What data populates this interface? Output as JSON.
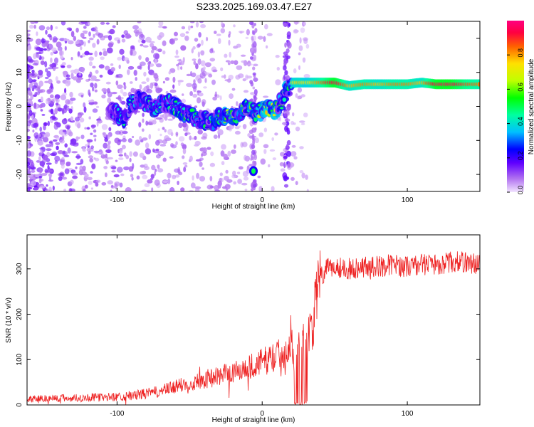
{
  "title": "S233.2025.169.03.47.E27",
  "colors": {
    "snr_line": "#ee2222",
    "ridge_spots": "#3a00e0",
    "scatter_spots": "#b27cf0"
  },
  "chart_data": [
    {
      "type": "heatmap",
      "name": "spectrogram",
      "xlabel": "Height of straight line (km)",
      "ylabel": "Frequency (Hz)",
      "xlim": [
        -162,
        150
      ],
      "ylim": [
        -25,
        25
      ],
      "xticks": [
        -100,
        0,
        100
      ],
      "yticks": [
        -20,
        -10,
        0,
        10,
        20
      ],
      "colorbar": {
        "label": "Normalized spectral amplitude",
        "range": [
          0,
          1
        ],
        "ticks": [
          "0.0",
          "0.2",
          "0.4",
          "0.6",
          "0.8"
        ],
        "colormap": [
          "#f2e4ff",
          "#b070f0",
          "#6000ff",
          "#0000ff",
          "#00c0ff",
          "#00ffa0",
          "#00ff00",
          "#c0ff00",
          "#ffe000",
          "#ff6000",
          "#ff0040",
          "#ff0080"
        ]
      },
      "ridge": {
        "x": [
          -105,
          -95,
          -90,
          -85,
          -80,
          -75,
          -70,
          -65,
          -60,
          -55,
          -50,
          -45,
          -40,
          -35,
          -30,
          -25,
          -20,
          -15,
          -10,
          -5,
          0,
          5,
          10,
          15,
          20,
          25,
          30,
          40,
          50,
          60,
          70,
          80,
          90,
          100,
          110,
          120,
          130,
          140,
          150
        ],
        "y": [
          -1,
          -4,
          1,
          2,
          1,
          -1,
          1,
          1,
          0,
          -2,
          -2,
          -4,
          -4,
          -5,
          -3,
          -3,
          -3,
          -2,
          0,
          -2,
          -1,
          -1,
          -1,
          3,
          7,
          7,
          7,
          7,
          7,
          6,
          6.5,
          6.5,
          6.5,
          6.5,
          7,
          6.5,
          6.5,
          6.5,
          6.5
        ],
        "amplitude": [
          0.3,
          0.4,
          0.45,
          0.4,
          0.45,
          0.4,
          0.5,
          0.45,
          0.5,
          0.45,
          0.55,
          0.5,
          0.45,
          0.5,
          0.55,
          0.6,
          0.5,
          0.55,
          0.5,
          0.55,
          0.6,
          0.65,
          0.6,
          0.5,
          0.7,
          0.75,
          0.7,
          0.8,
          0.95,
          0.75,
          0.8,
          0.75,
          0.8,
          0.8,
          0.75,
          0.95,
          0.95,
          0.85,
          0.8
        ]
      },
      "isolated_blob": {
        "x": -6,
        "y": -19,
        "amplitude": 0.5
      },
      "vertical_bands_x": [
        -6,
        17
      ]
    },
    {
      "type": "line",
      "name": "snr",
      "xlabel": "Height of straight line (km)",
      "ylabel": "SNR (10 * v/v)",
      "xlim": [
        -162,
        150
      ],
      "ylim": [
        0,
        375
      ],
      "xticks": [
        -100,
        0,
        100
      ],
      "yticks": [
        0,
        100,
        200,
        300
      ],
      "trend": {
        "x": [
          -162,
          -140,
          -120,
          -100,
          -90,
          -80,
          -70,
          -60,
          -50,
          -40,
          -30,
          -20,
          -10,
          0,
          10,
          15,
          20,
          25,
          30,
          35,
          37,
          40,
          45,
          50,
          60,
          70,
          80,
          90,
          100,
          110,
          120,
          130,
          140,
          150
        ],
        "y": [
          14,
          15,
          16,
          18,
          20,
          25,
          30,
          40,
          48,
          56,
          64,
          72,
          82,
          95,
          108,
          118,
          125,
          135,
          150,
          175,
          230,
          280,
          300,
          305,
          300,
          305,
          305,
          310,
          305,
          310,
          310,
          315,
          315,
          310
        ]
      },
      "dropout_x_range": [
        22,
        31
      ]
    }
  ]
}
